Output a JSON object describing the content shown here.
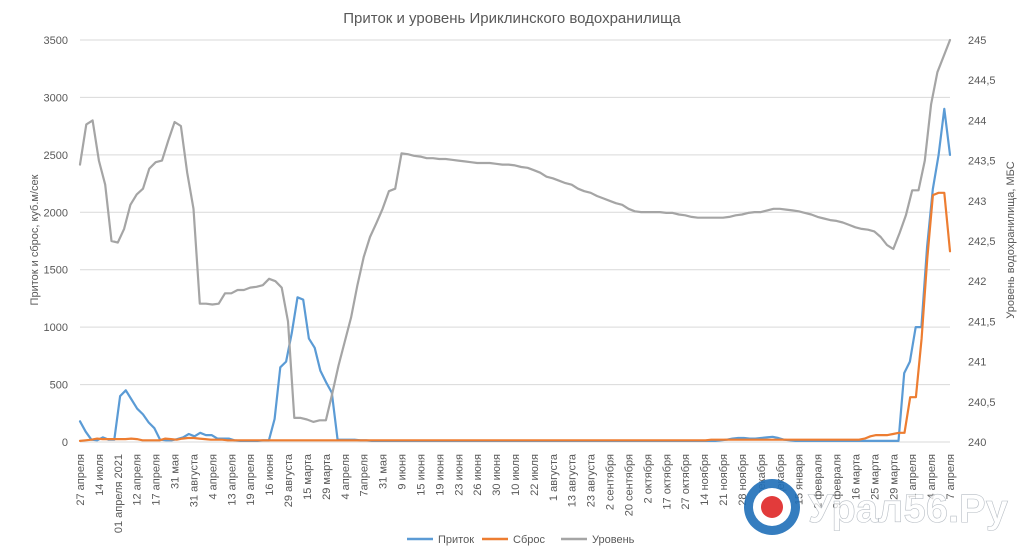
{
  "chart_data": {
    "type": "line",
    "title": "Приток и уровень Ириклинского водохранилища",
    "ylabel_left": "Приток и сброс, куб.м/сек",
    "ylabel_right": "Уровень водохранилища, МБС",
    "y_left": {
      "min": 0,
      "max": 3500,
      "ticks": [
        "0",
        "500",
        "1000",
        "1500",
        "2000",
        "2500",
        "3000",
        "3500"
      ]
    },
    "y_right": {
      "min": 240,
      "max": 245,
      "ticks": [
        "240",
        "240,5",
        "241",
        "241,5",
        "242",
        "242,5",
        "243",
        "243,5",
        "244",
        "244,5",
        "245"
      ]
    },
    "grid": true,
    "legend_position": "bottom",
    "x_labels": [
      "27 апреля",
      "14 июля",
      "01 апреля 2021",
      "12 апреля",
      "17 апреля",
      "31 мая",
      "31 августа",
      "4 апреля",
      "13 апреля",
      "19 апреля",
      "16 июня",
      "29 августа",
      "15 марта",
      "29 марта",
      "4 апреля",
      "7апреля",
      "31 мая",
      "9 июня",
      "15 июня",
      "19 июня",
      "23 июня",
      "26 июня",
      "30 июня",
      "10 июля",
      "22 июля",
      "1 августа",
      "13 августа",
      "23 августа",
      "2 сентября",
      "20 сентября",
      "2 октября",
      "17 октября",
      "27 октября",
      "14 ноября",
      "21 ноября",
      "28 ноября",
      "5 декабря",
      "25 декабря",
      "15 января",
      "2 февраля",
      "9 февраля",
      "16 марта",
      "25 марта",
      "29 марта",
      "1 апреля",
      "4 апреля",
      "7 апреля"
    ],
    "series": [
      {
        "name": "Приток",
        "color": "#5b9bd5",
        "axis": "left",
        "values": [
          180,
          90,
          20,
          15,
          40,
          20,
          20,
          400,
          450,
          370,
          290,
          240,
          170,
          120,
          20,
          15,
          15,
          25,
          40,
          70,
          50,
          80,
          60,
          60,
          30,
          30,
          30,
          15,
          10,
          10,
          10,
          10,
          15,
          15,
          200,
          650,
          700,
          950,
          1260,
          1240,
          900,
          820,
          620,
          520,
          430,
          20,
          20,
          20,
          20,
          15,
          15,
          10,
          10,
          10,
          10,
          10,
          10,
          10,
          10,
          10,
          10,
          10,
          10,
          10,
          10,
          10,
          10,
          10,
          10,
          10,
          10,
          10,
          10,
          10,
          10,
          10,
          10,
          10,
          10,
          10,
          10,
          10,
          10,
          10,
          10,
          10,
          10,
          10,
          10,
          10,
          10,
          10,
          10,
          10,
          10,
          10,
          10,
          10,
          10,
          10,
          10,
          10,
          10,
          10,
          10,
          10,
          10,
          10,
          10,
          10,
          10,
          10,
          15,
          20,
          30,
          35,
          35,
          30,
          30,
          35,
          40,
          45,
          35,
          20,
          15,
          10,
          10,
          10,
          10,
          10,
          10,
          10,
          10,
          10,
          10,
          10,
          10,
          10,
          10,
          10,
          10,
          10,
          10,
          10,
          600,
          700,
          1000,
          1000,
          1700,
          2200,
          2500,
          2900,
          2500
        ]
      },
      {
        "name": "Сброс",
        "color": "#ed7d31",
        "axis": "left",
        "values": [
          10,
          15,
          20,
          30,
          25,
          25,
          25,
          25,
          25,
          30,
          25,
          15,
          15,
          15,
          15,
          30,
          25,
          20,
          30,
          35,
          35,
          30,
          25,
          20,
          20,
          20,
          15,
          15,
          15,
          15,
          15,
          15,
          15,
          15,
          15,
          15,
          15,
          15,
          15,
          15,
          15,
          15,
          15,
          15,
          15,
          15,
          15,
          15,
          15,
          15,
          15,
          15,
          15,
          15,
          15,
          15,
          15,
          15,
          15,
          15,
          15,
          15,
          15,
          15,
          15,
          15,
          15,
          15,
          15,
          15,
          15,
          15,
          15,
          15,
          15,
          15,
          15,
          15,
          15,
          15,
          15,
          15,
          15,
          15,
          15,
          15,
          15,
          15,
          15,
          15,
          15,
          15,
          15,
          15,
          15,
          15,
          15,
          15,
          15,
          15,
          15,
          15,
          15,
          15,
          15,
          15,
          15,
          15,
          15,
          15,
          15,
          20,
          20,
          20,
          20,
          20,
          20,
          20,
          20,
          20,
          20,
          20,
          20,
          20,
          20,
          20,
          20,
          20,
          20,
          20,
          20,
          20,
          20,
          20,
          20,
          20,
          20,
          20,
          30,
          50,
          60,
          60,
          60,
          70,
          80,
          80,
          390,
          390,
          900,
          1600,
          2150,
          2170,
          2170,
          1660
        ]
      },
      {
        "name": "Уровень",
        "color": "#a5a5a5",
        "axis": "right",
        "values": [
          243.45,
          243.95,
          244.0,
          243.5,
          243.2,
          242.5,
          242.48,
          242.65,
          242.95,
          243.08,
          243.15,
          243.4,
          243.48,
          243.5,
          243.75,
          243.98,
          243.93,
          243.35,
          242.9,
          241.72,
          241.72,
          241.71,
          241.72,
          241.85,
          241.85,
          241.89,
          241.89,
          241.92,
          241.93,
          241.95,
          242.03,
          242.0,
          241.92,
          241.5,
          240.3,
          240.3,
          240.28,
          240.25,
          240.27,
          240.27,
          240.6,
          240.95,
          241.25,
          241.55,
          241.95,
          242.3,
          242.55,
          242.72,
          242.9,
          243.12,
          243.15,
          243.59,
          243.58,
          243.56,
          243.55,
          243.53,
          243.53,
          243.52,
          243.52,
          243.51,
          243.5,
          243.49,
          243.48,
          243.47,
          243.47,
          243.47,
          243.46,
          243.45,
          243.45,
          243.44,
          243.42,
          243.41,
          243.38,
          243.35,
          243.3,
          243.28,
          243.25,
          243.22,
          243.2,
          243.15,
          243.12,
          243.1,
          243.06,
          243.03,
          243.0,
          242.97,
          242.95,
          242.9,
          242.87,
          242.86,
          242.86,
          242.86,
          242.86,
          242.85,
          242.85,
          242.83,
          242.82,
          242.8,
          242.79,
          242.79,
          242.79,
          242.79,
          242.79,
          242.8,
          242.82,
          242.83,
          242.85,
          242.86,
          242.86,
          242.88,
          242.9,
          242.9,
          242.89,
          242.88,
          242.87,
          242.85,
          242.83,
          242.8,
          242.78,
          242.76,
          242.75,
          242.73,
          242.7,
          242.67,
          242.65,
          242.64,
          242.62,
          242.55,
          242.45,
          242.4,
          242.6,
          242.82,
          243.13,
          243.13,
          243.5,
          244.2,
          244.6,
          244.8,
          245.0
        ]
      }
    ]
  },
  "watermark": {
    "text": "Урал56.Ру",
    "logo": "ural56-logo"
  }
}
